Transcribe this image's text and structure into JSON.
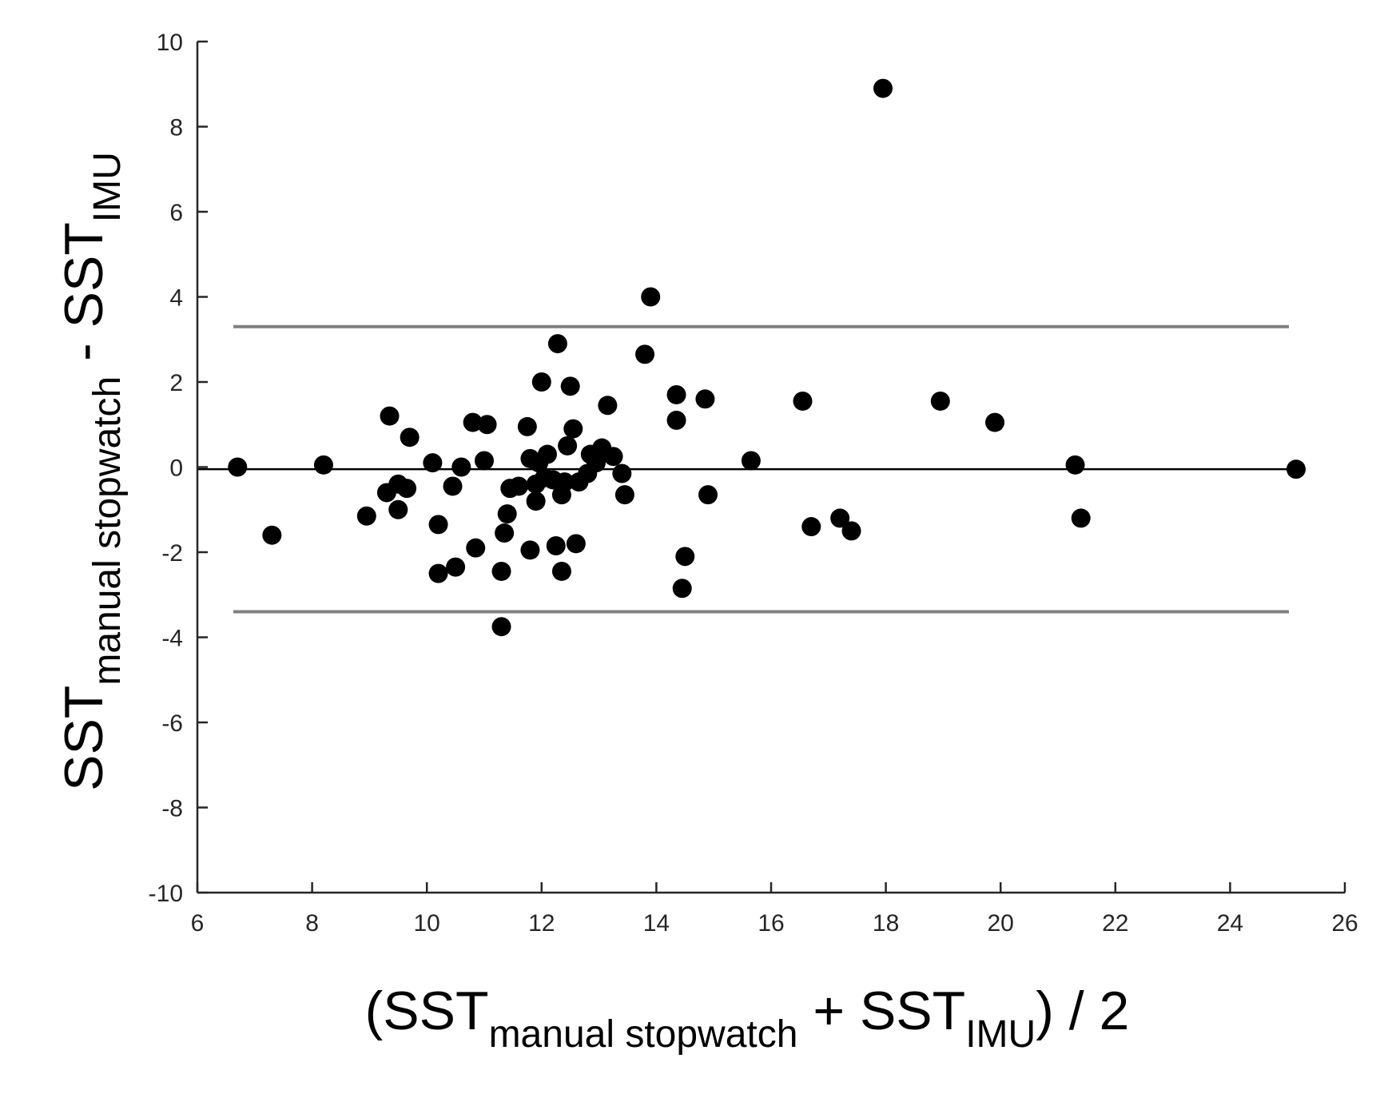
{
  "chart_data": {
    "type": "scatter",
    "title": "",
    "xlabel": {
      "parts": [
        {
          "text": "(SST",
          "sub": false
        },
        {
          "text": "manual stopwatch",
          "sub": true
        },
        {
          "text": " + SST",
          "sub": false
        },
        {
          "text": "IMU",
          "sub": true
        },
        {
          "text": ") / 2",
          "sub": false
        }
      ]
    },
    "ylabel": {
      "parts": [
        {
          "text": "SST",
          "sub": false
        },
        {
          "text": "manual stopwatch",
          "sub": true
        },
        {
          "text": " - SST",
          "sub": false
        },
        {
          "text": "IMU",
          "sub": true
        }
      ]
    },
    "xlim": [
      6,
      26
    ],
    "ylim": [
      -10,
      10
    ],
    "xticks": [
      6,
      8,
      10,
      12,
      14,
      16,
      18,
      20,
      22,
      24,
      26
    ],
    "yticks": [
      -10,
      -8,
      -6,
      -4,
      -2,
      0,
      2,
      4,
      6,
      8,
      10
    ],
    "grid": false,
    "reference_lines": [
      {
        "kind": "mean",
        "y": -0.05,
        "color": "#000000"
      },
      {
        "kind": "upper-limit-of-agreement",
        "y": 3.3,
        "color": "#808080"
      },
      {
        "kind": "lower-limit-of-agreement",
        "y": -3.4,
        "color": "#808080"
      }
    ],
    "point_color": "#000000",
    "points": [
      {
        "x": 6.7,
        "y": 0.0
      },
      {
        "x": 7.3,
        "y": -1.6
      },
      {
        "x": 8.2,
        "y": 0.05
      },
      {
        "x": 8.95,
        "y": -1.15
      },
      {
        "x": 9.3,
        "y": -0.6
      },
      {
        "x": 9.35,
        "y": 1.2
      },
      {
        "x": 9.5,
        "y": -1.0
      },
      {
        "x": 9.5,
        "y": -0.4
      },
      {
        "x": 9.65,
        "y": -0.5
      },
      {
        "x": 9.7,
        "y": 0.7
      },
      {
        "x": 10.1,
        "y": 0.1
      },
      {
        "x": 10.2,
        "y": -1.35
      },
      {
        "x": 10.2,
        "y": -2.5
      },
      {
        "x": 10.45,
        "y": -0.45
      },
      {
        "x": 10.5,
        "y": -2.35
      },
      {
        "x": 10.6,
        "y": 0.0
      },
      {
        "x": 10.8,
        "y": 1.05
      },
      {
        "x": 10.85,
        "y": -1.9
      },
      {
        "x": 11.0,
        "y": 0.15
      },
      {
        "x": 11.05,
        "y": 1.0
      },
      {
        "x": 11.3,
        "y": -3.75
      },
      {
        "x": 11.3,
        "y": -2.45
      },
      {
        "x": 11.35,
        "y": -1.55
      },
      {
        "x": 11.4,
        "y": -1.1
      },
      {
        "x": 11.45,
        "y": -0.5
      },
      {
        "x": 11.6,
        "y": -0.45
      },
      {
        "x": 11.75,
        "y": 0.95
      },
      {
        "x": 11.8,
        "y": -1.95
      },
      {
        "x": 11.8,
        "y": 0.2
      },
      {
        "x": 11.9,
        "y": -0.4
      },
      {
        "x": 11.9,
        "y": -0.8
      },
      {
        "x": 11.95,
        "y": 0.1
      },
      {
        "x": 12.0,
        "y": 2.0
      },
      {
        "x": 12.05,
        "y": -0.25
      },
      {
        "x": 12.1,
        "y": 0.3
      },
      {
        "x": 12.2,
        "y": -0.3
      },
      {
        "x": 12.25,
        "y": -1.85
      },
      {
        "x": 12.28,
        "y": 2.9
      },
      {
        "x": 12.35,
        "y": -0.65
      },
      {
        "x": 12.35,
        "y": -2.45
      },
      {
        "x": 12.4,
        "y": -0.35
      },
      {
        "x": 12.45,
        "y": 0.5
      },
      {
        "x": 12.5,
        "y": 1.9
      },
      {
        "x": 12.55,
        "y": 0.9
      },
      {
        "x": 12.6,
        "y": -1.8
      },
      {
        "x": 12.65,
        "y": -0.35
      },
      {
        "x": 12.8,
        "y": -0.15
      },
      {
        "x": 12.85,
        "y": 0.3
      },
      {
        "x": 12.95,
        "y": 0.1
      },
      {
        "x": 13.05,
        "y": 0.45
      },
      {
        "x": 13.15,
        "y": 1.45
      },
      {
        "x": 13.25,
        "y": 0.25
      },
      {
        "x": 13.4,
        "y": -0.15
      },
      {
        "x": 13.45,
        "y": -0.65
      },
      {
        "x": 13.8,
        "y": 2.65
      },
      {
        "x": 13.9,
        "y": 4.0
      },
      {
        "x": 14.35,
        "y": 1.7
      },
      {
        "x": 14.35,
        "y": 1.1
      },
      {
        "x": 14.45,
        "y": -2.85
      },
      {
        "x": 14.5,
        "y": -2.1
      },
      {
        "x": 14.85,
        "y": 1.6
      },
      {
        "x": 14.9,
        "y": -0.65
      },
      {
        "x": 15.65,
        "y": 0.15
      },
      {
        "x": 16.55,
        "y": 1.55
      },
      {
        "x": 16.7,
        "y": -1.4
      },
      {
        "x": 17.2,
        "y": -1.2
      },
      {
        "x": 17.4,
        "y": -1.5
      },
      {
        "x": 17.95,
        "y": 8.9
      },
      {
        "x": 18.95,
        "y": 1.55
      },
      {
        "x": 19.9,
        "y": 1.05
      },
      {
        "x": 21.3,
        "y": 0.05
      },
      {
        "x": 21.4,
        "y": -1.2
      },
      {
        "x": 25.15,
        "y": -0.05
      }
    ]
  }
}
